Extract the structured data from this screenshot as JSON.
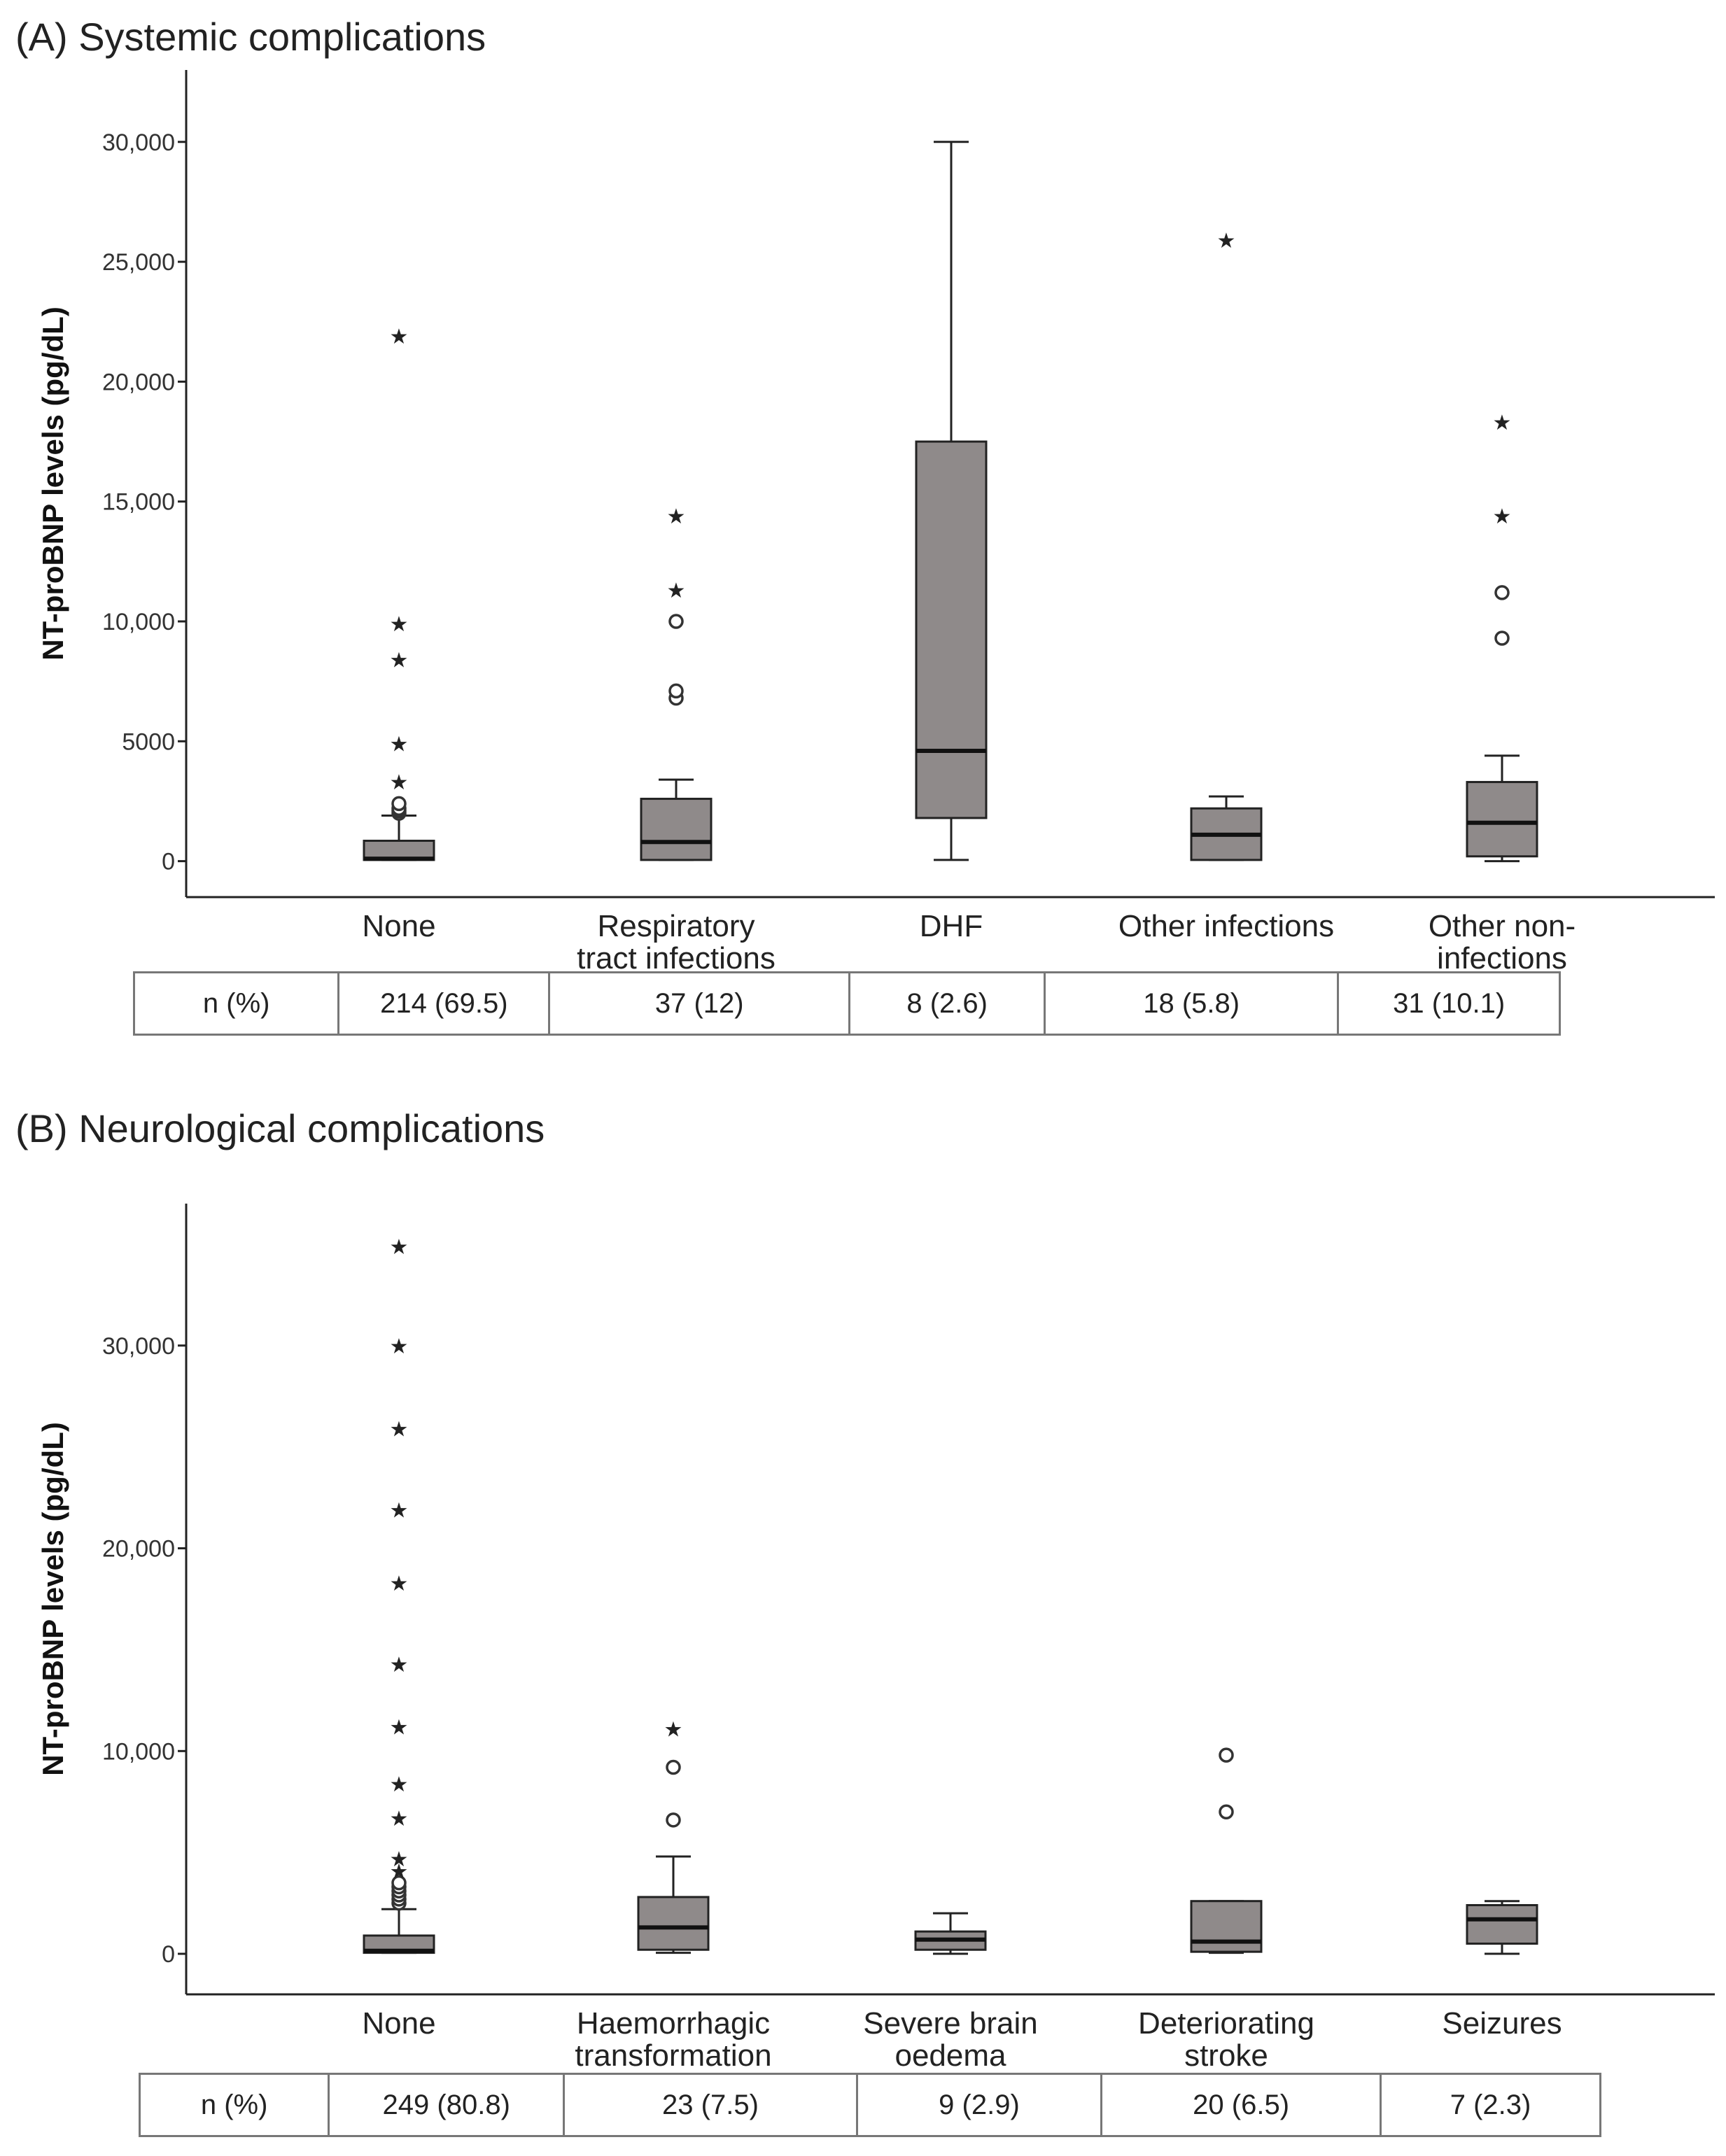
{
  "chart_data": [
    {
      "type": "box",
      "title": "(A) Systemic complications",
      "ylabel": "NT-proBNP levels (pg/dL)",
      "xlabel": "",
      "ylim": [
        -1500,
        33000
      ],
      "yticks": [
        0,
        5000,
        10000,
        15000,
        20000,
        25000,
        30000
      ],
      "ytick_labels": [
        "0",
        "5000",
        "10,000",
        "15,000",
        "20,000",
        "25,000",
        "30,000"
      ],
      "grid": false,
      "categories": [
        "None",
        "Respiratory tract infections",
        "DHF",
        "Other infections",
        "Other non-infections"
      ],
      "category_lines": [
        [
          "None"
        ],
        [
          "Respiratory",
          "tract infections"
        ],
        [
          "DHF"
        ],
        [
          "Other infections"
        ],
        [
          "Other non-",
          "infections"
        ]
      ],
      "boxes": [
        {
          "whisker_low": 50,
          "q1": 50,
          "median": 100,
          "q3": 850,
          "whisker_high": 1900,
          "outliers_circle": [
            2000,
            2100,
            2200,
            2400
          ],
          "outliers_star": [
            3400,
            5000,
            8500,
            10000,
            22000
          ]
        },
        {
          "whisker_low": 50,
          "q1": 50,
          "median": 800,
          "q3": 2600,
          "whisker_high": 3400,
          "outliers_circle": [
            6800,
            7100,
            10000
          ],
          "outliers_star": [
            11400,
            14500
          ]
        },
        {
          "whisker_low": 50,
          "q1": 1800,
          "median": 4600,
          "q3": 17500,
          "whisker_high": 30000,
          "outliers_circle": [],
          "outliers_star": []
        },
        {
          "whisker_low": 50,
          "q1": 50,
          "median": 1100,
          "q3": 2200,
          "whisker_high": 2700,
          "outliers_circle": [],
          "outliers_star": [
            26000
          ]
        },
        {
          "whisker_low": 0,
          "q1": 200,
          "median": 1600,
          "q3": 3300,
          "whisker_high": 4400,
          "outliers_circle": [
            9300,
            11200
          ],
          "outliers_star": [
            14500,
            18400
          ]
        }
      ],
      "n_table": {
        "header": "n (%)",
        "values": [
          "214 (69.5)",
          "37 (12)",
          "8 (2.6)",
          "18 (5.8)",
          "31 (10.1)"
        ]
      }
    },
    {
      "type": "box",
      "title": "(B) Neurological complications",
      "ylabel": "NT-proBNP levels (pg/dL)",
      "xlabel": "",
      "ylim": [
        -2000,
        37000
      ],
      "yticks": [
        0,
        10000,
        20000,
        30000
      ],
      "ytick_labels": [
        "0",
        "10,000",
        "20,000",
        "30,000"
      ],
      "grid": false,
      "categories": [
        "None",
        "Haemorrhagic transformation",
        "Severe brain oedema",
        "Deteriorating stroke",
        "Seizures"
      ],
      "category_lines": [
        [
          "None"
        ],
        [
          "Haemorrhagic",
          "transformation"
        ],
        [
          "Severe brain",
          "oedema"
        ],
        [
          "Deteriorating",
          "stroke"
        ],
        [
          "Seizures"
        ]
      ],
      "boxes": [
        {
          "whisker_low": 50,
          "q1": 50,
          "median": 150,
          "q3": 900,
          "whisker_high": 2200,
          "outliers_circle": [
            2500,
            2700,
            2900,
            3100,
            3300,
            3500
          ],
          "outliers_star": [
            4200,
            4800,
            6800,
            8500,
            11300,
            14400,
            18400,
            22000,
            26000,
            30100,
            35000
          ]
        },
        {
          "whisker_low": 50,
          "q1": 200,
          "median": 1300,
          "q3": 2800,
          "whisker_high": 4800,
          "outliers_circle": [
            6600,
            9200
          ],
          "outliers_star": [
            11200
          ]
        },
        {
          "whisker_low": 0,
          "q1": 200,
          "median": 700,
          "q3": 1100,
          "whisker_high": 2000,
          "outliers_circle": [],
          "outliers_star": []
        },
        {
          "whisker_low": 50,
          "q1": 100,
          "median": 600,
          "q3": 2600,
          "whisker_high": 2600,
          "outliers_circle": [
            7000,
            9800
          ],
          "outliers_star": []
        },
        {
          "whisker_low": 0,
          "q1": 500,
          "median": 1700,
          "q3": 2400,
          "whisker_high": 2600,
          "outliers_circle": [],
          "outliers_star": []
        }
      ],
      "n_table": {
        "header": "n (%)",
        "values": [
          "249 (80.8)",
          "23 (7.5)",
          "9 (2.9)",
          "20 (6.5)",
          "7 (2.3)"
        ]
      }
    }
  ]
}
